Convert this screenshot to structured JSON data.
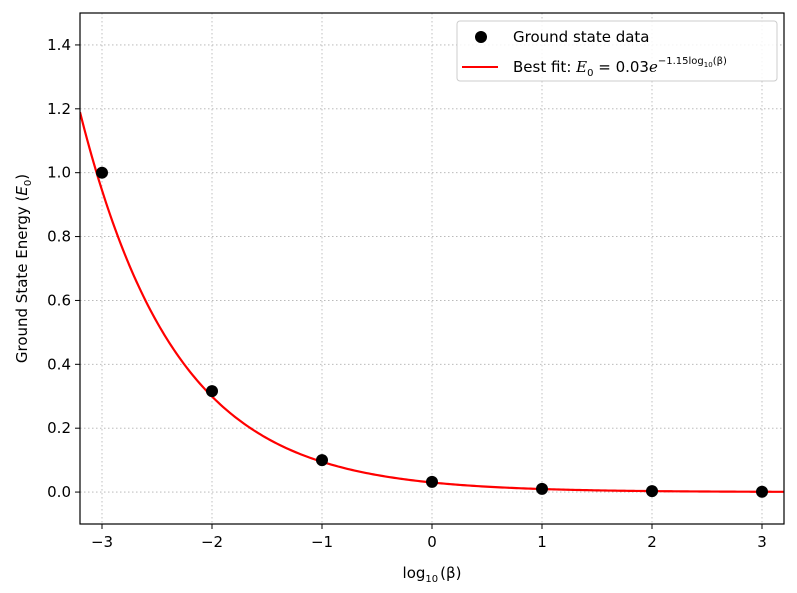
{
  "chart_data": {
    "type": "scatter",
    "xlabel_base": "log",
    "xlabel_sub": "10",
    "xlabel_arg": "(β)",
    "ylabel_main": "Ground State Energy (",
    "ylabel_var": "E",
    "ylabel_sub": "0",
    "ylabel_close": ")",
    "xlim": [
      -3.2,
      3.2
    ],
    "ylim": [
      -0.1,
      1.5
    ],
    "x_ticks": [
      -3,
      -2,
      -1,
      0,
      1,
      2,
      3
    ],
    "x_tick_labels": [
      "−3",
      "−2",
      "−1",
      "0",
      "1",
      "2",
      "3"
    ],
    "y_ticks": [
      0.0,
      0.2,
      0.4,
      0.6,
      0.8,
      1.0,
      1.2,
      1.4
    ],
    "y_tick_labels": [
      "0.0",
      "0.2",
      "0.4",
      "0.6",
      "0.8",
      "1.0",
      "1.2",
      "1.4"
    ],
    "grid": true,
    "legend_position": "top-right",
    "series": [
      {
        "name": "Ground state data",
        "kind": "scatter",
        "color": "#000000",
        "x": [
          -3,
          -2,
          -1,
          0,
          1,
          2,
          3
        ],
        "y": [
          1.0,
          0.316,
          0.1,
          0.032,
          0.01,
          0.003,
          0.001
        ]
      },
      {
        "name": "Best fit",
        "kind": "line",
        "color": "#ff0000",
        "model": {
          "a": 0.03,
          "b": -1.15
        }
      }
    ],
    "legend": {
      "scatter_label": "Ground state data",
      "fit_prefix": "Best fit: ",
      "fit_E": "E",
      "fit_E_sub": "0",
      "fit_eq": " = 0.03",
      "fit_e": "e",
      "fit_exp_coef": "−1.15log",
      "fit_exp_sub": "10",
      "fit_exp_arg": "(β)"
    }
  }
}
